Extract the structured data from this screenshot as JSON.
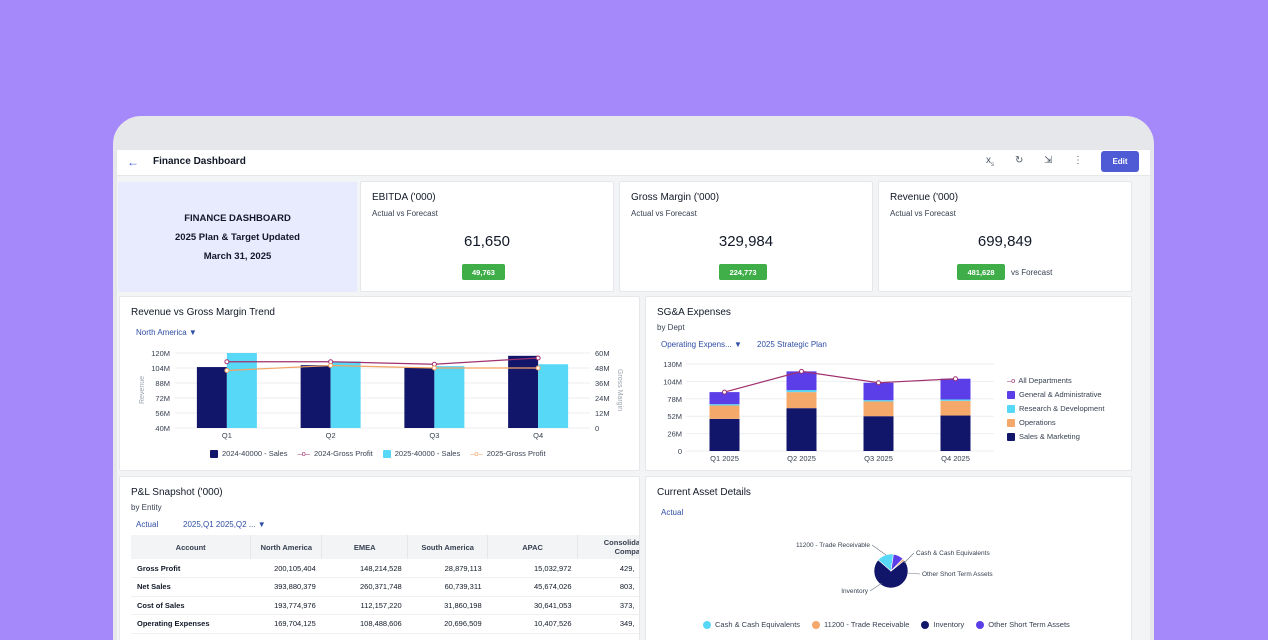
{
  "header": {
    "title": "Finance Dashboard",
    "edit_label": "Edit",
    "back_icon": "arrow-left-icon"
  },
  "banner": {
    "line1": "FINANCE DASHBOARD",
    "line2": "2025 Plan & Target Updated",
    "line3": "March 31, 2025"
  },
  "kpis": [
    {
      "title": "EBITDA ('000)",
      "subtitle": "Actual vs Forecast",
      "value": "61,650",
      "badge": "49,763",
      "note": ""
    },
    {
      "title": "Gross Margin ('000)",
      "subtitle": "Actual vs Forecast",
      "value": "329,984",
      "badge": "224,773",
      "note": ""
    },
    {
      "title": "Revenue ('000)",
      "subtitle": "Actual vs Forecast",
      "value": "699,849",
      "badge": "481,628",
      "note": "vs Forecast"
    }
  ],
  "trend": {
    "title": "Revenue vs Gross Margin Trend",
    "filter": "North America",
    "left_axis_label": "Revenue",
    "right_axis_label": "Gross Margin",
    "legend": [
      "2024-40000 - Sales",
      "2024-Gross Profit",
      "2025-40000 - Sales",
      "2025-Gross Profit"
    ]
  },
  "sga": {
    "title": "SG&A Expenses",
    "subtitle": "by Dept",
    "filter1": "Operating Expens...",
    "filter2": "2025 Strategic Plan",
    "legend": [
      "All Departments",
      "General & Administrative",
      "Research & Development",
      "Operations",
      "Sales & Marketing"
    ]
  },
  "pl": {
    "title": "P&L Snapshot ('000)",
    "subtitle": "by Entity",
    "filter1": "Actual",
    "filter2": "2025,Q1 2025,Q2 ...",
    "columns": [
      "Account",
      "North America",
      "EMEA",
      "South America",
      "APAC",
      "Consolidated Company"
    ],
    "columns_visible": [
      "Account",
      "North America",
      "EMEA",
      "South America",
      "APAC",
      "Consolida\nCompa"
    ],
    "rows": [
      [
        "Gross Profit",
        "200,105,404",
        "148,214,528",
        "28,879,113",
        "15,032,972",
        "429,"
      ],
      [
        "Net Sales",
        "393,880,379",
        "260,371,748",
        "60,739,311",
        "45,674,026",
        "803,"
      ],
      [
        "Cost of Sales",
        "193,774,976",
        "112,157,220",
        "31,860,198",
        "30,641,053",
        "373,"
      ],
      [
        "Operating Expenses",
        "169,704,125",
        "108,488,606",
        "20,696,509",
        "10,407,526",
        "349,"
      ]
    ]
  },
  "assets": {
    "title": "Current Asset Details",
    "filter": "Actual",
    "labels": [
      "11200 - Trade Receivable",
      "Cash & Cash Equivalents",
      "Other Short Term Assets",
      "Inventory"
    ],
    "legend": [
      "Cash & Cash Equivalents",
      "11200 - Trade Receivable",
      "Inventory",
      "Other Short Term Assets"
    ]
  },
  "chart_data": [
    {
      "type": "bar",
      "title": "Revenue vs Gross Margin Trend",
      "categories": [
        "Q1",
        "Q2",
        "Q3",
        "Q4"
      ],
      "ylim": [
        40,
        120
      ],
      "y_ticks": [
        "40M",
        "56M",
        "72M",
        "88M",
        "104M",
        "120M"
      ],
      "y2lim": [
        0,
        60
      ],
      "y2_ticks": [
        "0",
        "12M",
        "24M",
        "36M",
        "48M",
        "60M"
      ],
      "series": [
        {
          "name": "2024-40000 - Sales",
          "kind": "bar",
          "color": "#12166b",
          "values": [
            105,
            107,
            104,
            117
          ]
        },
        {
          "name": "2025-40000 - Sales",
          "kind": "bar",
          "color": "#56d8f6",
          "values": [
            120,
            111,
            106,
            108
          ]
        },
        {
          "name": "2024-Gross Profit",
          "kind": "line",
          "color": "#a0306e",
          "values": [
            53,
            53,
            51,
            56
          ]
        },
        {
          "name": "2025-Gross Profit",
          "kind": "line",
          "color": "#f4a261",
          "values": [
            46,
            50,
            48,
            48
          ]
        }
      ]
    },
    {
      "type": "bar",
      "stacked": true,
      "title": "SG&A Expenses",
      "categories": [
        "Q1 2025",
        "Q2 2025",
        "Q3 2025",
        "Q4 2025"
      ],
      "ylim": [
        0,
        130
      ],
      "y_ticks": [
        "0",
        "26M",
        "52M",
        "78M",
        "104M",
        "130M"
      ],
      "series": [
        {
          "name": "Sales & Marketing",
          "color": "#12166b",
          "values": [
            48,
            64,
            52,
            53
          ]
        },
        {
          "name": "Operations",
          "color": "#f4a86a",
          "values": [
            20,
            24,
            22,
            22
          ]
        },
        {
          "name": "Research & Development",
          "color": "#56d8f6",
          "values": [
            2,
            3,
            2,
            2
          ]
        },
        {
          "name": "General & Administrative",
          "color": "#5b3ee8",
          "values": [
            18,
            28,
            26,
            31
          ]
        },
        {
          "name": "All Departments",
          "kind": "line",
          "color": "#a0306e",
          "values": [
            88,
            119,
            102,
            108
          ]
        }
      ]
    },
    {
      "type": "pie",
      "title": "Current Asset Details",
      "categories": [
        "Inventory",
        "Cash & Cash Equivalents",
        "Other Short Term Assets",
        "11200 - Trade Receivable"
      ],
      "values": [
        72,
        16,
        10,
        2
      ],
      "colors": [
        "#12166b",
        "#56d8f6",
        "#5b3ee8",
        "#f4a86a"
      ]
    }
  ]
}
